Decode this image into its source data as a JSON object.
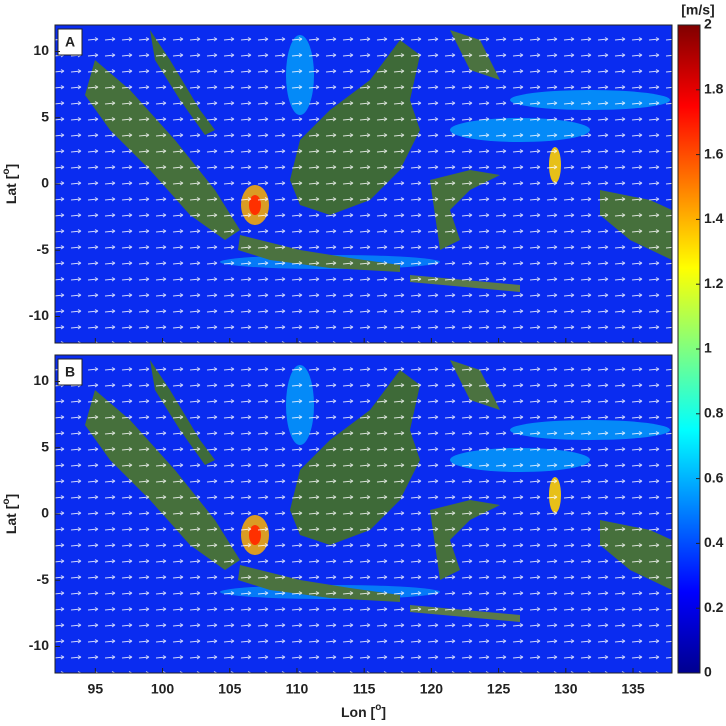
{
  "chart_data": {
    "type": "map",
    "panels": [
      {
        "label": "A"
      },
      {
        "label": "B"
      }
    ],
    "x_label": {
      "main": "Lon [",
      "superscript": "o",
      "close": "]"
    },
    "y_label": {
      "main": "Lat [",
      "superscript": "o",
      "close": "]"
    },
    "xlim": [
      92,
      137.9
    ],
    "xticks": [
      95,
      100,
      105,
      110,
      115,
      120,
      125,
      130,
      135
    ],
    "ylim": [
      -12,
      12
    ],
    "yticks": [
      -10,
      -5,
      0,
      5,
      10
    ],
    "colorbar": {
      "label": "[m/s]",
      "lim": [
        0,
        2
      ],
      "ticks": [
        0,
        0.2,
        0.4,
        0.6,
        0.8,
        1,
        1.2,
        1.4,
        1.6,
        1.8,
        2
      ],
      "colormap": "jet"
    }
  }
}
